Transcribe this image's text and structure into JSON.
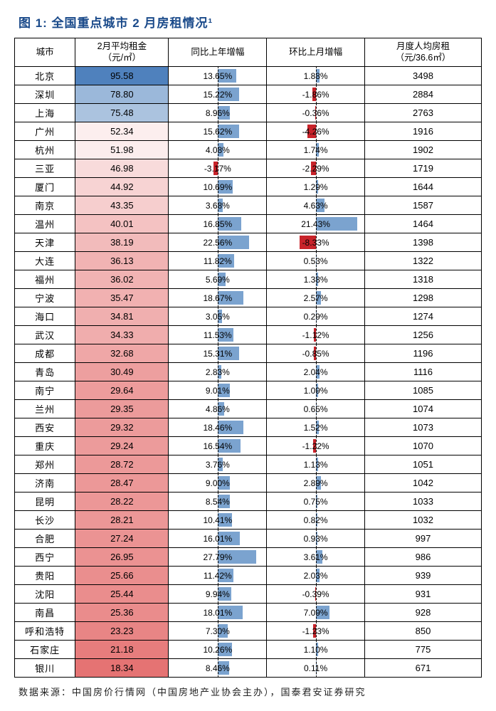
{
  "title": "图 1: 全国重点城市 2 月房租情况¹",
  "columns": {
    "city": "城市",
    "rent": "2月平均租金\n（元/㎡）",
    "yoy": "同比上年增幅",
    "mom": "环比上月增幅",
    "avg": "月度人均房租\n（元/36.6㎡）"
  },
  "rent_min": 18.34,
  "rent_max": 95.58,
  "yoy_scale": 35,
  "mom_scale": 25,
  "gradient": {
    "high": "#4f81bd",
    "mid": "#ffffff",
    "low": "#e57373"
  },
  "bar_pos_color": "#7ba3cf",
  "bar_neg_color": "#c8232a",
  "rows": [
    {
      "city": "北京",
      "rent": 95.58,
      "yoy": 13.65,
      "mom": 1.88,
      "avg": 3498
    },
    {
      "city": "深圳",
      "rent": 78.8,
      "yoy": 15.22,
      "mom": -1.86,
      "avg": 2884
    },
    {
      "city": "上海",
      "rent": 75.48,
      "yoy": 8.96,
      "mom": -0.36,
      "avg": 2763
    },
    {
      "city": "广州",
      "rent": 52.34,
      "yoy": 15.62,
      "mom": -4.26,
      "avg": 1916
    },
    {
      "city": "杭州",
      "rent": 51.98,
      "yoy": 4.08,
      "mom": 1.74,
      "avg": 1902
    },
    {
      "city": "三亚",
      "rent": 46.98,
      "yoy": -3.17,
      "mom": -2.29,
      "avg": 1719
    },
    {
      "city": "厦门",
      "rent": 44.92,
      "yoy": 10.69,
      "mom": 1.29,
      "avg": 1644
    },
    {
      "city": "南京",
      "rent": 43.35,
      "yoy": 3.68,
      "mom": 4.63,
      "avg": 1587
    },
    {
      "city": "温州",
      "rent": 40.01,
      "yoy": 16.85,
      "mom": 21.43,
      "avg": 1464
    },
    {
      "city": "天津",
      "rent": 38.19,
      "yoy": 22.56,
      "mom": -8.33,
      "avg": 1398
    },
    {
      "city": "大连",
      "rent": 36.13,
      "yoy": 11.82,
      "mom": 0.53,
      "avg": 1322
    },
    {
      "city": "福州",
      "rent": 36.02,
      "yoy": 5.69,
      "mom": 1.38,
      "avg": 1318
    },
    {
      "city": "宁波",
      "rent": 35.47,
      "yoy": 18.67,
      "mom": 2.57,
      "avg": 1298
    },
    {
      "city": "海口",
      "rent": 34.81,
      "yoy": 3.05,
      "mom": 0.29,
      "avg": 1274
    },
    {
      "city": "武汉",
      "rent": 34.33,
      "yoy": 11.53,
      "mom": -1.12,
      "avg": 1256
    },
    {
      "city": "成都",
      "rent": 32.68,
      "yoy": 15.31,
      "mom": -0.85,
      "avg": 1196
    },
    {
      "city": "青岛",
      "rent": 30.49,
      "yoy": 2.83,
      "mom": 2.04,
      "avg": 1116
    },
    {
      "city": "南宁",
      "rent": 29.64,
      "yoy": 9.01,
      "mom": 1.09,
      "avg": 1085
    },
    {
      "city": "兰州",
      "rent": 29.35,
      "yoy": 4.86,
      "mom": 0.65,
      "avg": 1074
    },
    {
      "city": "西安",
      "rent": 29.32,
      "yoy": 18.46,
      "mom": 1.52,
      "avg": 1073
    },
    {
      "city": "重庆",
      "rent": 29.24,
      "yoy": 16.54,
      "mom": -1.22,
      "avg": 1070
    },
    {
      "city": "郑州",
      "rent": 28.72,
      "yoy": 3.76,
      "mom": 1.13,
      "avg": 1051
    },
    {
      "city": "济南",
      "rent": 28.47,
      "yoy": 9.0,
      "mom": 2.89,
      "avg": 1042
    },
    {
      "city": "昆明",
      "rent": 28.22,
      "yoy": 8.54,
      "mom": 0.75,
      "avg": 1033
    },
    {
      "city": "长沙",
      "rent": 28.21,
      "yoy": 10.41,
      "mom": 0.82,
      "avg": 1032
    },
    {
      "city": "合肥",
      "rent": 27.24,
      "yoy": 16.01,
      "mom": 0.93,
      "avg": 997
    },
    {
      "city": "西宁",
      "rent": 26.95,
      "yoy": 27.79,
      "mom": 3.61,
      "avg": 986
    },
    {
      "city": "贵阳",
      "rent": 25.66,
      "yoy": 11.42,
      "mom": 2.03,
      "avg": 939
    },
    {
      "city": "沈阳",
      "rent": 25.44,
      "yoy": 9.94,
      "mom": -0.39,
      "avg": 931
    },
    {
      "city": "南昌",
      "rent": 25.36,
      "yoy": 18.01,
      "mom": 7.09,
      "avg": 928
    },
    {
      "city": "呼和浩特",
      "rent": 23.23,
      "yoy": 7.3,
      "mom": -1.23,
      "avg": 850
    },
    {
      "city": "石家庄",
      "rent": 21.18,
      "yoy": 10.26,
      "mom": 1.1,
      "avg": 775
    },
    {
      "city": "银川",
      "rent": 18.34,
      "yoy": 8.46,
      "mom": 0.11,
      "avg": 671
    }
  ],
  "source": "数据来源：中国房价行情网（中国房地产业协会主办），国泰君安证券研究"
}
